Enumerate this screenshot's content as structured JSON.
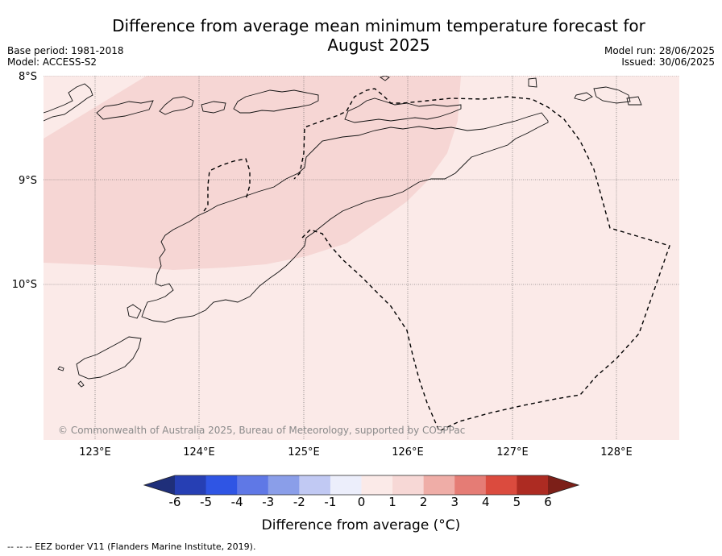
{
  "header": {
    "title_line1": "Difference from average mean minimum temperature forecast for",
    "title_line2": "August 2025",
    "base_period": "Base period: 1981-2018",
    "model": "Model: ACCESS-S2",
    "model_run": "Model run: 28/06/2025",
    "issued": "Issued: 30/06/2025"
  },
  "map": {
    "lat_labels": [
      "8°S",
      "9°S",
      "10°S"
    ],
    "lon_labels": [
      "123°E",
      "124°E",
      "125°E",
      "126°E",
      "127°E",
      "128°E"
    ],
    "copyright": "© Commonwealth of Australia 2025, Bureau of Meteorology, supported by COSPPac",
    "shading": [
      {
        "class": "0 to 1",
        "color": "#fbeae8"
      },
      {
        "class": "1 to 2",
        "color": "#f7d8d6"
      }
    ],
    "border_style": "dashed"
  },
  "colorbar": {
    "ticks": [
      "-6",
      "-5",
      "-4",
      "-3",
      "-2",
      "-1",
      "0",
      "1",
      "2",
      "3",
      "4",
      "5",
      "6"
    ],
    "colors": [
      "#1f2f7a",
      "#263fb4",
      "#2f55e4",
      "#5f78e6",
      "#8a9ee9",
      "#c1c9f3",
      "#eceefb",
      "#fbeae8",
      "#f7d8d6",
      "#efada7",
      "#e57c75",
      "#db4b3e",
      "#ad2b22",
      "#7c1f18"
    ],
    "title": "Difference from average (°C)"
  },
  "footnote": "-- -- -- EEZ border V11 (Flanders Marine Institute, 2019)."
}
